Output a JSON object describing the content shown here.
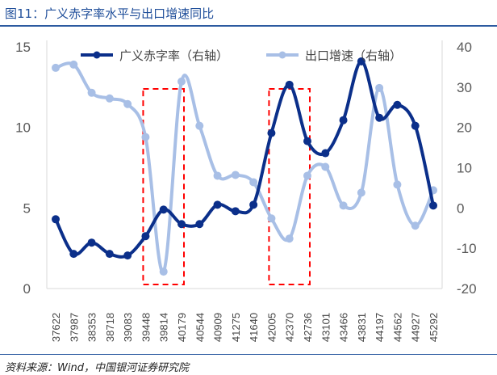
{
  "title": "图11：广义赤字率水平与出口增速同比",
  "source": "资料来源：Wind，中国银河证券研究院",
  "colors": {
    "dark": "#0b2f8a",
    "light": "#a8bfe6",
    "box": "#ff0000"
  },
  "chart_data": {
    "type": "line",
    "title": "图11：广义赤字率水平与出口增速同比",
    "categories": [
      "37622",
      "37987",
      "38353",
      "38718",
      "39083",
      "39448",
      "39814",
      "40179",
      "40544",
      "40909",
      "41275",
      "41640",
      "42005",
      "42370",
      "42736",
      "43101",
      "43466",
      "43831",
      "44197",
      "44562",
      "44927",
      "45292"
    ],
    "series": [
      {
        "name": "广义赤字率（右轴）",
        "axis": "left",
        "values": [
          4.3,
          2.15,
          2.85,
          2.15,
          2.05,
          3.25,
          4.9,
          4.0,
          4.0,
          5.2,
          4.8,
          5.2,
          9.65,
          12.65,
          9.15,
          8.4,
          10.45,
          14.1,
          10.6,
          11.4,
          10.1,
          5.15
        ]
      },
      {
        "name": "出口增速（右轴）",
        "axis": "right",
        "values": [
          34.8,
          35.6,
          28.6,
          27.2,
          25.8,
          17.6,
          -15.8,
          31.4,
          20.4,
          8.0,
          8.2,
          6.4,
          -2.6,
          -7.6,
          8.0,
          10.2,
          0.6,
          3.8,
          29.8,
          5.8,
          -4.4,
          4.4
        ]
      }
    ],
    "left_axis": {
      "ylim": [
        0,
        15
      ],
      "ticks": [
        "0",
        "5",
        "10",
        "15"
      ]
    },
    "right_axis": {
      "ylim": [
        -20,
        40
      ],
      "ticks": [
        "-20",
        "-10",
        "0",
        "10",
        "20",
        "30",
        "40"
      ]
    },
    "highlight_ranges": [
      [
        "39448",
        "40179"
      ],
      [
        "42005",
        "42736"
      ]
    ],
    "legend": "top",
    "grid": false
  }
}
